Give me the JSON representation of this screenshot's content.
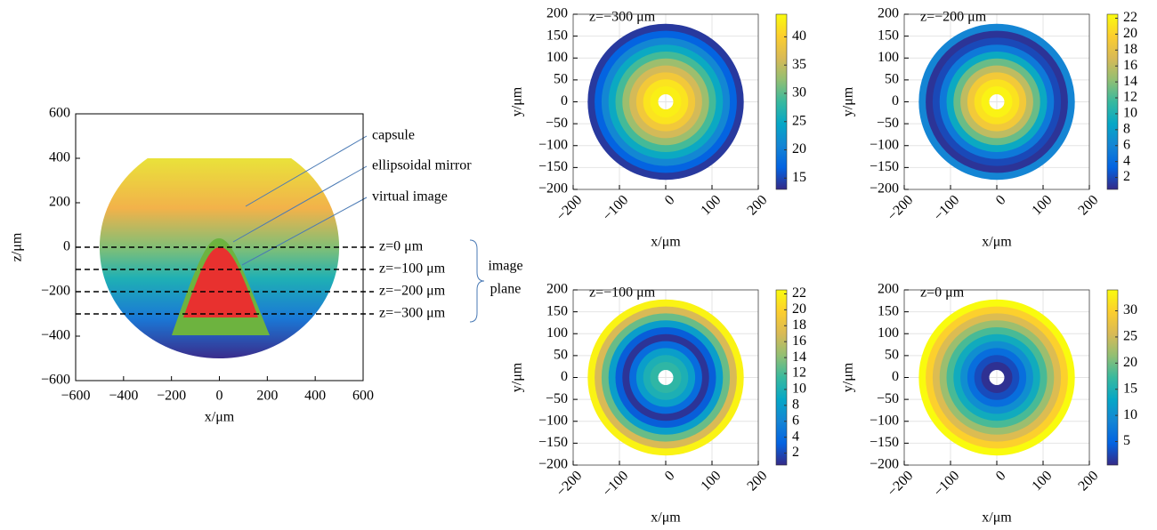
{
  "chart_data": [
    {
      "type": "schematic",
      "xlabel": "x/μm",
      "ylabel": "z/μm",
      "xlim": [
        -600,
        600
      ],
      "ylim": [
        -600,
        600
      ],
      "xticks": [
        {
          "value": -600,
          "label": "−600"
        },
        {
          "value": -400,
          "label": "−400"
        },
        {
          "value": -200,
          "label": "−200"
        },
        0,
        200,
        400,
        600
      ],
      "yticks": [
        {
          "value": -600,
          "label": "−600"
        },
        {
          "value": -400,
          "label": "−400"
        },
        {
          "value": -200,
          "label": "−200"
        },
        0,
        200,
        400,
        600
      ],
      "planes": [
        {
          "value": 0,
          "label": "z=0 μm"
        },
        {
          "value": -100,
          "label": "z=−100 μm"
        },
        {
          "value": -200,
          "label": "z=−200 μm"
        },
        {
          "value": -300,
          "label": "z=−300 μm"
        }
      ],
      "annotations": [
        "capsule",
        "ellipsoidal mirror",
        "virtual image"
      ],
      "brace_label": [
        "image",
        "plane"
      ]
    },
    {
      "type": "heatmap",
      "title": "z=−300 μm",
      "xlabel": "x/μm",
      "ylabel": "y/μm",
      "colormap": "parula",
      "grid": true,
      "xlim": [
        -200,
        200
      ],
      "ylim": [
        -200,
        200
      ],
      "xticks": [
        {
          "value": -200,
          "label": "−200"
        },
        {
          "value": -100,
          "label": "−100"
        },
        0,
        100,
        200
      ],
      "yticks": [
        {
          "value": -200,
          "label": "−200"
        },
        {
          "value": -150,
          "label": "−150"
        },
        {
          "value": -100,
          "label": "−100"
        },
        {
          "value": -50,
          "label": "−50"
        },
        0,
        50,
        100,
        150,
        200
      ],
      "r": [
        25,
        40,
        55,
        70,
        85,
        100,
        115,
        130,
        145,
        160
      ],
      "values": [
        43,
        42,
        39,
        36,
        33,
        29,
        25,
        21,
        17,
        14
      ],
      "clim": [
        13,
        44
      ],
      "cticks": [
        15,
        20,
        25,
        30,
        35,
        40
      ]
    },
    {
      "type": "heatmap",
      "title": "z=−200 μm",
      "xlabel": "x/μm",
      "ylabel": "y/μm",
      "colormap": "parula",
      "grid": true,
      "xlim": [
        -200,
        200
      ],
      "ylim": [
        -200,
        200
      ],
      "xticks": [
        {
          "value": -200,
          "label": "−200"
        },
        {
          "value": -100,
          "label": "−100"
        },
        0,
        100,
        200
      ],
      "yticks": [
        {
          "value": -200,
          "label": "−200"
        },
        {
          "value": -150,
          "label": "−150"
        },
        {
          "value": -100,
          "label": "−100"
        },
        {
          "value": -50,
          "label": "−50"
        },
        0,
        50,
        100,
        150,
        200
      ],
      "r": [
        25,
        40,
        55,
        70,
        85,
        100,
        115,
        130,
        145,
        160
      ],
      "values": [
        22,
        21,
        19,
        16,
        13,
        9,
        5,
        2,
        1,
        6
      ],
      "clim": [
        0.5,
        22.5
      ],
      "cticks": [
        2,
        4,
        6,
        8,
        10,
        12,
        14,
        16,
        18,
        20,
        22
      ]
    },
    {
      "type": "heatmap",
      "title": "z=−100 μm",
      "xlabel": "x/μm",
      "ylabel": "y/μm",
      "colormap": "parula",
      "grid": true,
      "xlim": [
        -200,
        200
      ],
      "ylim": [
        -200,
        200
      ],
      "xticks": [
        {
          "value": -200,
          "label": "−200"
        },
        {
          "value": -100,
          "label": "−100"
        },
        0,
        100,
        200
      ],
      "yticks": [
        {
          "value": -200,
          "label": "−200"
        },
        {
          "value": -150,
          "label": "−150"
        },
        {
          "value": -100,
          "label": "−100"
        },
        {
          "value": -50,
          "label": "−50"
        },
        0,
        50,
        100,
        150,
        200
      ],
      "r": [
        25,
        40,
        55,
        70,
        85,
        100,
        115,
        130,
        145,
        160
      ],
      "values": [
        11,
        10,
        8,
        4,
        1,
        3,
        8,
        13,
        17,
        22
      ],
      "clim": [
        0.5,
        22.5
      ],
      "cticks": [
        2,
        4,
        6,
        8,
        10,
        12,
        14,
        16,
        18,
        20,
        22
      ]
    },
    {
      "type": "heatmap",
      "title": "z=0 μm",
      "xlabel": "x/μm",
      "ylabel": "y/μm",
      "colormap": "parula",
      "grid": true,
      "xlim": [
        -200,
        200
      ],
      "ylim": [
        -200,
        200
      ],
      "xticks": [
        {
          "value": -200,
          "label": "−200"
        },
        {
          "value": -100,
          "label": "−100"
        },
        0,
        100,
        200
      ],
      "yticks": [
        {
          "value": -200,
          "label": "−200"
        },
        {
          "value": -150,
          "label": "−150"
        },
        {
          "value": -100,
          "label": "−100"
        },
        {
          "value": -50,
          "label": "−50"
        },
        0,
        50,
        100,
        150,
        200
      ],
      "r": [
        25,
        40,
        55,
        70,
        85,
        100,
        115,
        130,
        145,
        160
      ],
      "values": [
        1,
        3,
        6,
        10,
        14,
        18,
        22,
        26,
        30,
        34
      ],
      "clim": [
        0.5,
        34
      ],
      "cticks": [
        5,
        10,
        15,
        20,
        25,
        30
      ]
    }
  ]
}
